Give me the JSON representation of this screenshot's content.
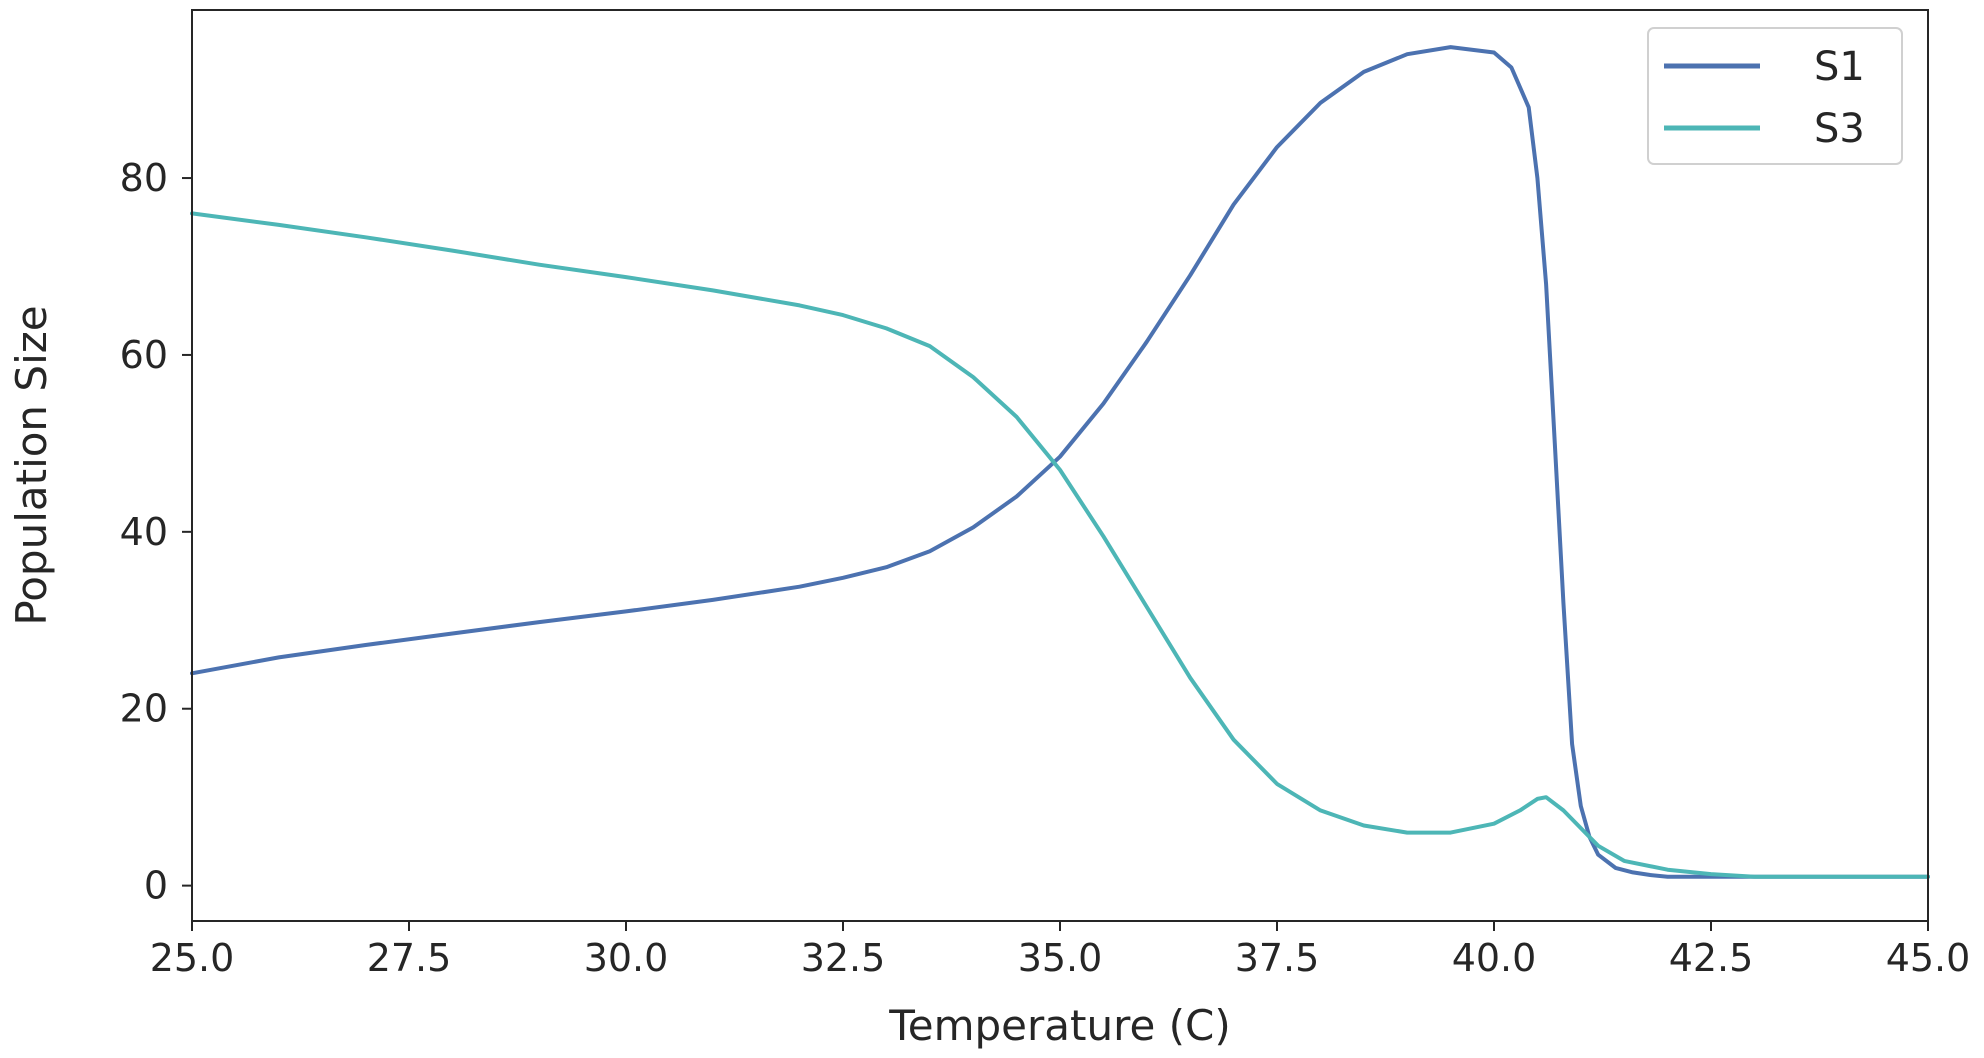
{
  "chart_data": {
    "type": "line",
    "title": "",
    "xlabel": "Temperature (C)",
    "ylabel": "Population Size",
    "xlim": [
      25.0,
      45.0
    ],
    "ylim": [
      -4,
      99
    ],
    "xticks": [
      "25.0",
      "27.5",
      "30.0",
      "32.5",
      "35.0",
      "37.5",
      "40.0",
      "42.5",
      "45.0"
    ],
    "xtick_values": [
      25.0,
      27.5,
      30.0,
      32.5,
      35.0,
      37.5,
      40.0,
      42.5,
      45.0
    ],
    "yticks": [
      "0",
      "20",
      "40",
      "60",
      "80"
    ],
    "ytick_values": [
      0,
      20,
      40,
      60,
      80
    ],
    "grid": false,
    "legend_position": "top-right",
    "series": [
      {
        "name": "S1",
        "color": "#4c72b0",
        "x": [
          25.0,
          26.0,
          27.0,
          28.0,
          29.0,
          30.0,
          31.0,
          32.0,
          32.5,
          33.0,
          33.5,
          34.0,
          34.5,
          35.0,
          35.5,
          36.0,
          36.5,
          37.0,
          37.5,
          38.0,
          38.5,
          39.0,
          39.5,
          40.0,
          40.2,
          40.4,
          40.5,
          40.6,
          40.7,
          40.8,
          40.9,
          41.0,
          41.1,
          41.2,
          41.4,
          41.6,
          41.8,
          42.0,
          42.5,
          43.0,
          44.0,
          45.0
        ],
        "y": [
          24,
          25.8,
          27.2,
          28.5,
          29.8,
          31.0,
          32.3,
          33.8,
          34.8,
          36.0,
          37.8,
          40.5,
          44.0,
          48.5,
          54.5,
          61.5,
          69.0,
          77.0,
          83.5,
          88.5,
          92.0,
          94.0,
          94.8,
          94.2,
          92.5,
          88.0,
          80.0,
          68.0,
          50.0,
          32.0,
          16.0,
          9.0,
          5.5,
          3.5,
          2.0,
          1.5,
          1.2,
          1.0,
          1.0,
          1.0,
          1.0,
          1.0
        ]
      },
      {
        "name": "S3",
        "color": "#4db6b6",
        "x": [
          25.0,
          26.0,
          27.0,
          28.0,
          29.0,
          30.0,
          31.0,
          32.0,
          32.5,
          33.0,
          33.5,
          34.0,
          34.5,
          35.0,
          35.5,
          36.0,
          36.5,
          37.0,
          37.5,
          38.0,
          38.5,
          39.0,
          39.5,
          40.0,
          40.3,
          40.5,
          40.6,
          40.8,
          41.0,
          41.2,
          41.5,
          42.0,
          42.5,
          43.0,
          44.0,
          45.0
        ],
        "y": [
          76,
          74.7,
          73.3,
          71.8,
          70.2,
          68.8,
          67.3,
          65.6,
          64.5,
          63.0,
          61.0,
          57.5,
          53.0,
          47.0,
          39.5,
          31.5,
          23.5,
          16.5,
          11.5,
          8.5,
          6.8,
          6.0,
          6.0,
          7.0,
          8.5,
          9.8,
          10.0,
          8.5,
          6.5,
          4.5,
          2.8,
          1.8,
          1.3,
          1.0,
          1.0,
          1.0
        ]
      }
    ]
  }
}
